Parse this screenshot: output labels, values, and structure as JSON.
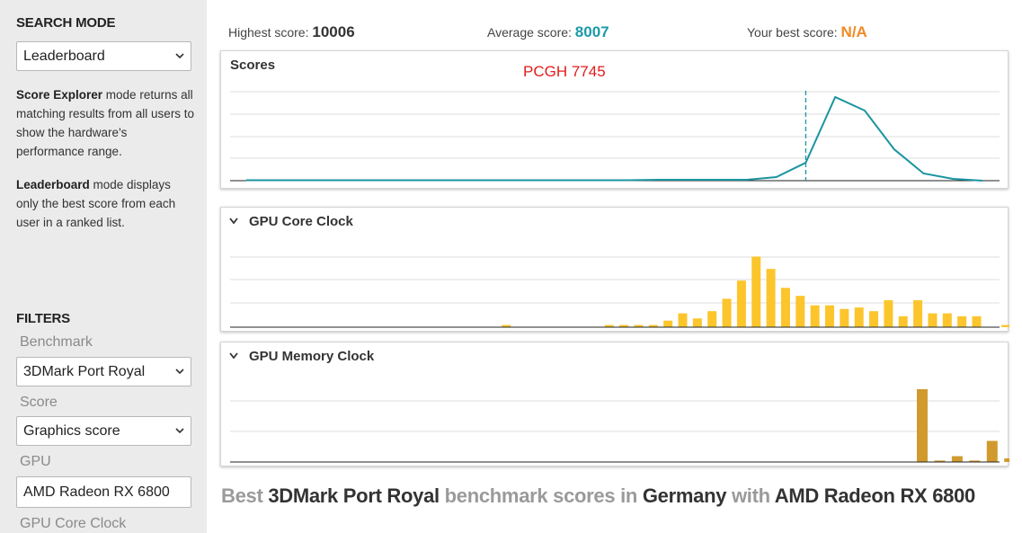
{
  "sidebar": {
    "search_mode_heading": "SEARCH MODE",
    "search_mode_value": "Leaderboard",
    "explorer_term": "Score Explorer",
    "explorer_desc": " mode returns all matching results from all users to show the hardware's performance range.",
    "leaderboard_term": "Leaderboard",
    "leaderboard_desc": " mode displays only the best score from each user in a ranked list.",
    "filters_heading": "FILTERS",
    "benchmark_label": "Benchmark",
    "benchmark_value": "3DMark Port Royal",
    "score_label": "Score",
    "score_value": "Graphics score",
    "gpu_label": "GPU",
    "gpu_value": "AMD Radeon RX 6800",
    "gpu_core_clock_label": "GPU Core Clock"
  },
  "stats": {
    "highest_label": "Highest score: ",
    "highest_value": "10006",
    "average_label": "Average score: ",
    "average_value": "8007",
    "best_label": "Your best score: ",
    "best_value": "N/A"
  },
  "colors": {
    "average": "#1a9aaa",
    "best": "#f08a24",
    "score_line": "#1a94a0",
    "core_bars": "#fcc52c",
    "memory_bars": "#d19a2f",
    "annotation": "#e31b1b"
  },
  "panels": {
    "scores_title": "Scores",
    "annotation": "PCGH 7745",
    "core_title": "GPU Core Clock",
    "memory_title": "GPU Memory Clock"
  },
  "headline": {
    "p1": "Best ",
    "p2": "3DMark Port Royal",
    "p3": " benchmark scores in ",
    "p4": "Germany",
    "p5": " with ",
    "p6": "AMD Radeon RX 6800"
  },
  "chart_data": [
    {
      "type": "line",
      "title": "Scores",
      "annotation": "PCGH 7745",
      "values": [
        0.5,
        0.5,
        0.5,
        0.5,
        0.5,
        0.5,
        0.5,
        0.5,
        0.5,
        0.5,
        0.5,
        0.5,
        0.5,
        0.5,
        1,
        1,
        1,
        1,
        4,
        20,
        93,
        78,
        35,
        8,
        2,
        0
      ],
      "marker_position": 0.76,
      "ylim": [
        0,
        100
      ]
    },
    {
      "type": "bar",
      "title": "GPU Core Clock",
      "values": [
        0,
        0,
        0,
        0,
        0,
        0,
        0,
        0,
        0,
        0,
        0,
        0,
        0,
        0,
        0,
        0,
        0,
        0,
        3,
        0,
        0,
        0,
        0,
        0,
        0,
        3,
        3,
        3,
        3,
        9,
        19,
        12,
        22,
        39,
        64,
        97,
        80,
        54,
        43,
        30,
        30,
        25,
        27,
        22,
        37,
        15,
        37,
        19,
        19,
        15,
        15,
        0,
        3
      ],
      "ylim": [
        0,
        100
      ]
    },
    {
      "type": "bar",
      "title": "GPU Memory Clock",
      "values": [
        0,
        0,
        0,
        0,
        0,
        0,
        0,
        0,
        0,
        0,
        0,
        0,
        0,
        0,
        0,
        0,
        0,
        0,
        0,
        0,
        0,
        0,
        0,
        0,
        0,
        0,
        0,
        0,
        0,
        0,
        0,
        0,
        0,
        0,
        0,
        0,
        0,
        0,
        0,
        0,
        100,
        2,
        8,
        2,
        29,
        5,
        32
      ],
      "ylim": [
        0,
        100
      ]
    }
  ]
}
